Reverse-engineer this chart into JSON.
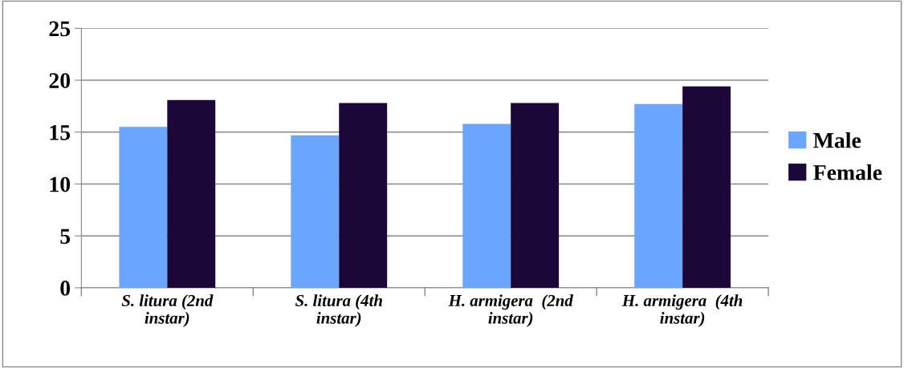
{
  "chart_data": {
    "type": "bar",
    "categories": [
      "S. litura (2nd\ninstar)",
      "S. litura (4th\ninstar)",
      "H. armigera  (2nd\ninstar)",
      "H. armigera  (4th\ninstar)"
    ],
    "series": [
      {
        "name": "Male",
        "color": "#6aa6ff",
        "values": [
          15.5,
          14.7,
          15.8,
          17.7
        ]
      },
      {
        "name": "Female",
        "color": "#1c0838",
        "values": [
          18.1,
          17.8,
          17.8,
          19.4
        ]
      }
    ],
    "ylim": [
      0,
      25
    ],
    "yticks": [
      0,
      5,
      10,
      15,
      20,
      25
    ],
    "grid": "y",
    "legend": "right"
  }
}
